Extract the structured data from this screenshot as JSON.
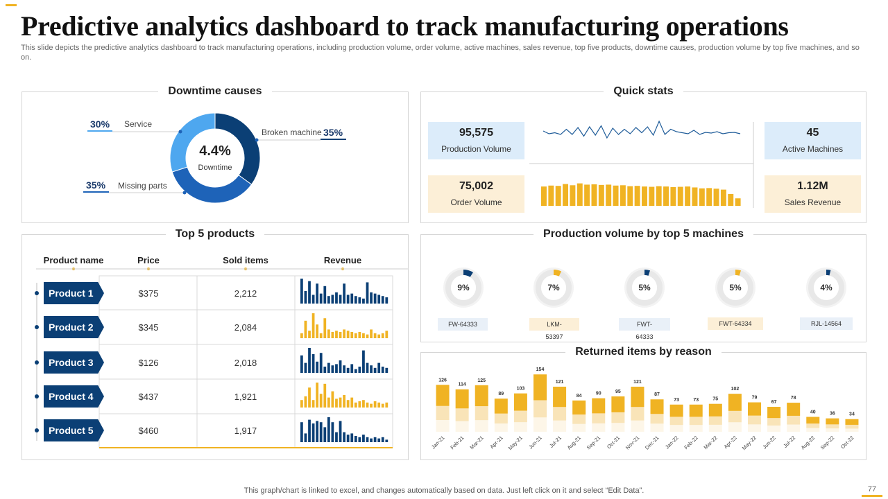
{
  "page": {
    "title": "Predictive analytics dashboard to track manufacturing operations",
    "subtitle": "This slide depicts the predictive analytics dashboard to track manufacturing operations, including production volume, order volume, active machines, sales revenue, top five products, downtime causes, production volume by top five machines, and so on.",
    "footer": "This graph/chart is linked to excel,  and changes automatically based on data. Just left click on it and select “Edit Data”.",
    "page_number": "77"
  },
  "colors": {
    "navy": "#0b3f75",
    "mid_blue": "#1e63b8",
    "light_blue": "#4ea7ef",
    "gold": "#f0b323",
    "cream": "#fcefd7",
    "pale_blue": "#dcecfa"
  },
  "downtime": {
    "title": "Downtime causes",
    "center_value": "4.4%",
    "center_label": "Downtime",
    "causes": [
      {
        "label": "Service",
        "pct_text": "30%",
        "value": 30
      },
      {
        "label": "Broken machine",
        "pct_text": "35%",
        "value": 35
      },
      {
        "label": "Missing parts",
        "pct_text": "35%",
        "value": 35
      }
    ]
  },
  "quick_stats": {
    "title": "Quick stats",
    "production_volume": {
      "value": "95,575",
      "label": "Production Volume"
    },
    "order_volume": {
      "value": "75,002",
      "label": "Order Volume"
    },
    "active_machines": {
      "value": "45",
      "label": "Active Machines"
    },
    "sales_revenue": {
      "value": "1.12M",
      "label": "Sales Revenue"
    }
  },
  "products": {
    "title": "Top 5 products",
    "headers": {
      "name": "Product name",
      "price": "Price",
      "sold": "Sold items",
      "revenue": "Revenue"
    },
    "rows": [
      {
        "name": "Product 1",
        "price": "$375",
        "sold": "2,212",
        "color": "#0b3f75"
      },
      {
        "name": "Product 2",
        "price": "$345",
        "sold": "2,084",
        "color": "#f0b323"
      },
      {
        "name": "Product 3",
        "price": "$126",
        "sold": "2,018",
        "color": "#0b3f75"
      },
      {
        "name": "Product 4",
        "price": "$437",
        "sold": "1,921",
        "color": "#f0b323"
      },
      {
        "name": "Product 5",
        "price": "$460",
        "sold": "1,917",
        "color": "#0b3f75"
      }
    ]
  },
  "machines": {
    "title": "Production volume by top 5 machines",
    "items": [
      {
        "id": "FW-64333",
        "pct_text": "9%",
        "value": 9,
        "color": "#0b3f75",
        "tag_bg": "#e9f0f8"
      },
      {
        "id": "LKM-53397",
        "pct_text": "7%",
        "value": 7,
        "color": "#f0b323",
        "tag_bg": "#fcefd7"
      },
      {
        "id": "FWT-64333",
        "pct_text": "5%",
        "value": 5,
        "color": "#0b3f75",
        "tag_bg": "#e9f0f8"
      },
      {
        "id": "FWT-64334",
        "pct_text": "5%",
        "value": 5,
        "color": "#f0b323",
        "tag_bg": "#fcefd7"
      },
      {
        "id": "RJL-14564",
        "pct_text": "4%",
        "value": 4,
        "color": "#0b3f75",
        "tag_bg": "#e9f0f8"
      }
    ]
  },
  "chart_data": [
    {
      "type": "bar",
      "title": "Returned items by reason",
      "categories": [
        "Jan-21",
        "Feb-21",
        "Mar-21",
        "Apr-21",
        "May-21",
        "Jun-21",
        "Jul-21",
        "Aug-21",
        "Sep-21",
        "Oct-21",
        "Nov-21",
        "Dec-21",
        "Jan-22",
        "Feb-22",
        "Mar-22",
        "Apr-22",
        "May-22",
        "Jun-22",
        "Jul-22",
        "Aug-22",
        "Sep-22",
        "Oct-22"
      ],
      "values": [
        126,
        114,
        125,
        89,
        103,
        154,
        121,
        84,
        90,
        95,
        121,
        87,
        73,
        73,
        75,
        102,
        79,
        67,
        78,
        40,
        36,
        34
      ],
      "ylim": [
        0,
        160
      ]
    },
    {
      "type": "line",
      "title": "Production volume trend",
      "values": [
        50,
        42,
        45,
        40,
        55,
        40,
        60,
        35,
        62,
        38,
        65,
        30,
        58,
        40,
        55,
        42,
        60,
        45,
        62,
        38,
        78,
        40,
        55,
        48,
        45,
        42,
        52,
        40,
        46,
        44,
        48,
        42,
        45,
        46,
        42
      ],
      "ylim": [
        0,
        100
      ]
    },
    {
      "type": "bar",
      "title": "Order volume trend",
      "values": [
        62,
        65,
        64,
        70,
        66,
        72,
        68,
        69,
        67,
        68,
        65,
        66,
        63,
        64,
        62,
        61,
        63,
        62,
        60,
        61,
        62,
        59,
        56,
        57,
        55,
        52,
        38,
        24
      ],
      "ylim": [
        0,
        100
      ]
    },
    {
      "type": "bar",
      "title": "Product 1 revenue trend",
      "values": [
        100,
        50,
        90,
        35,
        80,
        40,
        70,
        30,
        35,
        45,
        35,
        80,
        35,
        40,
        30,
        25,
        20,
        85,
        45,
        40,
        35,
        30,
        25
      ],
      "ylim": [
        0,
        100
      ]
    },
    {
      "type": "bar",
      "title": "Product 2 revenue trend",
      "values": [
        20,
        70,
        30,
        100,
        55,
        20,
        80,
        35,
        25,
        30,
        25,
        35,
        30,
        25,
        20,
        25,
        20,
        15,
        35,
        20,
        15,
        20,
        30
      ],
      "ylim": [
        0,
        100
      ]
    },
    {
      "type": "bar",
      "title": "Product 3 revenue trend",
      "values": [
        70,
        40,
        100,
        75,
        45,
        80,
        25,
        40,
        30,
        35,
        50,
        30,
        20,
        35,
        15,
        25,
        90,
        40,
        30,
        20,
        40,
        25,
        20
      ],
      "ylim": [
        0,
        100
      ]
    },
    {
      "type": "bar",
      "title": "Product 4 revenue trend",
      "values": [
        30,
        45,
        80,
        30,
        100,
        55,
        95,
        40,
        65,
        35,
        40,
        50,
        30,
        40,
        20,
        25,
        30,
        20,
        15,
        25,
        20,
        15,
        20
      ],
      "ylim": [
        0,
        100
      ]
    },
    {
      "type": "bar",
      "title": "Product 5 revenue trend",
      "values": [
        80,
        35,
        90,
        75,
        85,
        80,
        60,
        100,
        80,
        40,
        85,
        40,
        30,
        35,
        25,
        20,
        30,
        20,
        15,
        20,
        15,
        20,
        10
      ],
      "ylim": [
        0,
        100
      ]
    }
  ]
}
